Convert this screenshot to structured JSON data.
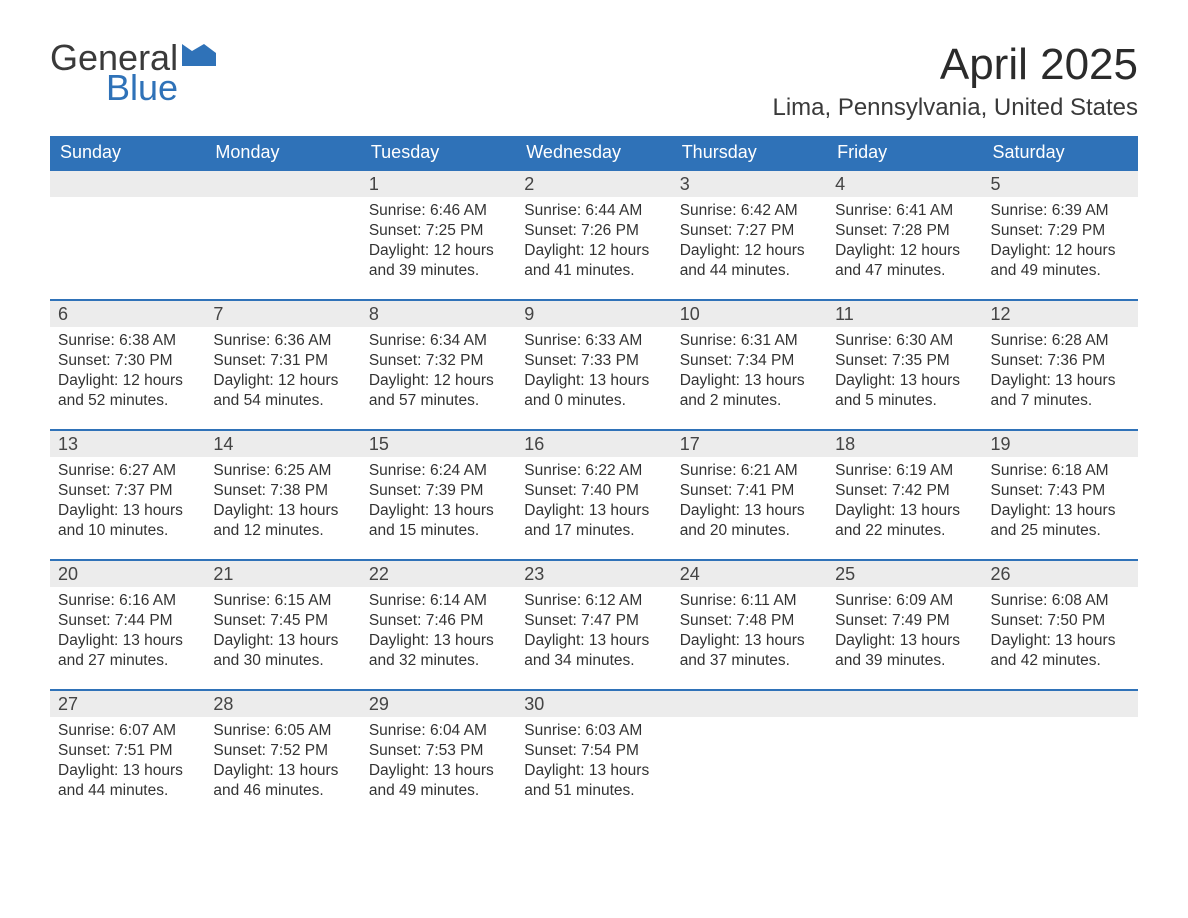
{
  "brand": {
    "part1": "General",
    "part2": "Blue",
    "part1_color": "#3a3a3a",
    "part2_color": "#2f72b8",
    "flag_color": "#2f72b8"
  },
  "title": "April 2025",
  "location": "Lima, Pennsylvania, United States",
  "colors": {
    "header_bg": "#2f72b8",
    "header_text": "#ffffff",
    "daynum_bg": "#ececec",
    "week_border": "#2f72b8",
    "body_text": "#333333",
    "page_bg": "#ffffff"
  },
  "fonts": {
    "title_size": 44,
    "location_size": 24,
    "dayhead_size": 18,
    "daynum_size": 18,
    "body_size": 15.5
  },
  "day_headers": [
    "Sunday",
    "Monday",
    "Tuesday",
    "Wednesday",
    "Thursday",
    "Friday",
    "Saturday"
  ],
  "weeks": [
    [
      {
        "num": "",
        "sunrise": "",
        "sunset": "",
        "daylight1": "",
        "daylight2": ""
      },
      {
        "num": "",
        "sunrise": "",
        "sunset": "",
        "daylight1": "",
        "daylight2": ""
      },
      {
        "num": "1",
        "sunrise": "Sunrise: 6:46 AM",
        "sunset": "Sunset: 7:25 PM",
        "daylight1": "Daylight: 12 hours",
        "daylight2": "and 39 minutes."
      },
      {
        "num": "2",
        "sunrise": "Sunrise: 6:44 AM",
        "sunset": "Sunset: 7:26 PM",
        "daylight1": "Daylight: 12 hours",
        "daylight2": "and 41 minutes."
      },
      {
        "num": "3",
        "sunrise": "Sunrise: 6:42 AM",
        "sunset": "Sunset: 7:27 PM",
        "daylight1": "Daylight: 12 hours",
        "daylight2": "and 44 minutes."
      },
      {
        "num": "4",
        "sunrise": "Sunrise: 6:41 AM",
        "sunset": "Sunset: 7:28 PM",
        "daylight1": "Daylight: 12 hours",
        "daylight2": "and 47 minutes."
      },
      {
        "num": "5",
        "sunrise": "Sunrise: 6:39 AM",
        "sunset": "Sunset: 7:29 PM",
        "daylight1": "Daylight: 12 hours",
        "daylight2": "and 49 minutes."
      }
    ],
    [
      {
        "num": "6",
        "sunrise": "Sunrise: 6:38 AM",
        "sunset": "Sunset: 7:30 PM",
        "daylight1": "Daylight: 12 hours",
        "daylight2": "and 52 minutes."
      },
      {
        "num": "7",
        "sunrise": "Sunrise: 6:36 AM",
        "sunset": "Sunset: 7:31 PM",
        "daylight1": "Daylight: 12 hours",
        "daylight2": "and 54 minutes."
      },
      {
        "num": "8",
        "sunrise": "Sunrise: 6:34 AM",
        "sunset": "Sunset: 7:32 PM",
        "daylight1": "Daylight: 12 hours",
        "daylight2": "and 57 minutes."
      },
      {
        "num": "9",
        "sunrise": "Sunrise: 6:33 AM",
        "sunset": "Sunset: 7:33 PM",
        "daylight1": "Daylight: 13 hours",
        "daylight2": "and 0 minutes."
      },
      {
        "num": "10",
        "sunrise": "Sunrise: 6:31 AM",
        "sunset": "Sunset: 7:34 PM",
        "daylight1": "Daylight: 13 hours",
        "daylight2": "and 2 minutes."
      },
      {
        "num": "11",
        "sunrise": "Sunrise: 6:30 AM",
        "sunset": "Sunset: 7:35 PM",
        "daylight1": "Daylight: 13 hours",
        "daylight2": "and 5 minutes."
      },
      {
        "num": "12",
        "sunrise": "Sunrise: 6:28 AM",
        "sunset": "Sunset: 7:36 PM",
        "daylight1": "Daylight: 13 hours",
        "daylight2": "and 7 minutes."
      }
    ],
    [
      {
        "num": "13",
        "sunrise": "Sunrise: 6:27 AM",
        "sunset": "Sunset: 7:37 PM",
        "daylight1": "Daylight: 13 hours",
        "daylight2": "and 10 minutes."
      },
      {
        "num": "14",
        "sunrise": "Sunrise: 6:25 AM",
        "sunset": "Sunset: 7:38 PM",
        "daylight1": "Daylight: 13 hours",
        "daylight2": "and 12 minutes."
      },
      {
        "num": "15",
        "sunrise": "Sunrise: 6:24 AM",
        "sunset": "Sunset: 7:39 PM",
        "daylight1": "Daylight: 13 hours",
        "daylight2": "and 15 minutes."
      },
      {
        "num": "16",
        "sunrise": "Sunrise: 6:22 AM",
        "sunset": "Sunset: 7:40 PM",
        "daylight1": "Daylight: 13 hours",
        "daylight2": "and 17 minutes."
      },
      {
        "num": "17",
        "sunrise": "Sunrise: 6:21 AM",
        "sunset": "Sunset: 7:41 PM",
        "daylight1": "Daylight: 13 hours",
        "daylight2": "and 20 minutes."
      },
      {
        "num": "18",
        "sunrise": "Sunrise: 6:19 AM",
        "sunset": "Sunset: 7:42 PM",
        "daylight1": "Daylight: 13 hours",
        "daylight2": "and 22 minutes."
      },
      {
        "num": "19",
        "sunrise": "Sunrise: 6:18 AM",
        "sunset": "Sunset: 7:43 PM",
        "daylight1": "Daylight: 13 hours",
        "daylight2": "and 25 minutes."
      }
    ],
    [
      {
        "num": "20",
        "sunrise": "Sunrise: 6:16 AM",
        "sunset": "Sunset: 7:44 PM",
        "daylight1": "Daylight: 13 hours",
        "daylight2": "and 27 minutes."
      },
      {
        "num": "21",
        "sunrise": "Sunrise: 6:15 AM",
        "sunset": "Sunset: 7:45 PM",
        "daylight1": "Daylight: 13 hours",
        "daylight2": "and 30 minutes."
      },
      {
        "num": "22",
        "sunrise": "Sunrise: 6:14 AM",
        "sunset": "Sunset: 7:46 PM",
        "daylight1": "Daylight: 13 hours",
        "daylight2": "and 32 minutes."
      },
      {
        "num": "23",
        "sunrise": "Sunrise: 6:12 AM",
        "sunset": "Sunset: 7:47 PM",
        "daylight1": "Daylight: 13 hours",
        "daylight2": "and 34 minutes."
      },
      {
        "num": "24",
        "sunrise": "Sunrise: 6:11 AM",
        "sunset": "Sunset: 7:48 PM",
        "daylight1": "Daylight: 13 hours",
        "daylight2": "and 37 minutes."
      },
      {
        "num": "25",
        "sunrise": "Sunrise: 6:09 AM",
        "sunset": "Sunset: 7:49 PM",
        "daylight1": "Daylight: 13 hours",
        "daylight2": "and 39 minutes."
      },
      {
        "num": "26",
        "sunrise": "Sunrise: 6:08 AM",
        "sunset": "Sunset: 7:50 PM",
        "daylight1": "Daylight: 13 hours",
        "daylight2": "and 42 minutes."
      }
    ],
    [
      {
        "num": "27",
        "sunrise": "Sunrise: 6:07 AM",
        "sunset": "Sunset: 7:51 PM",
        "daylight1": "Daylight: 13 hours",
        "daylight2": "and 44 minutes."
      },
      {
        "num": "28",
        "sunrise": "Sunrise: 6:05 AM",
        "sunset": "Sunset: 7:52 PM",
        "daylight1": "Daylight: 13 hours",
        "daylight2": "and 46 minutes."
      },
      {
        "num": "29",
        "sunrise": "Sunrise: 6:04 AM",
        "sunset": "Sunset: 7:53 PM",
        "daylight1": "Daylight: 13 hours",
        "daylight2": "and 49 minutes."
      },
      {
        "num": "30",
        "sunrise": "Sunrise: 6:03 AM",
        "sunset": "Sunset: 7:54 PM",
        "daylight1": "Daylight: 13 hours",
        "daylight2": "and 51 minutes."
      },
      {
        "num": "",
        "sunrise": "",
        "sunset": "",
        "daylight1": "",
        "daylight2": ""
      },
      {
        "num": "",
        "sunrise": "",
        "sunset": "",
        "daylight1": "",
        "daylight2": ""
      },
      {
        "num": "",
        "sunrise": "",
        "sunset": "",
        "daylight1": "",
        "daylight2": ""
      }
    ]
  ]
}
